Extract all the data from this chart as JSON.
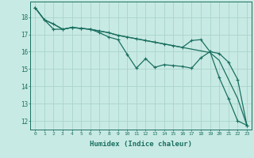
{
  "xlabel": "Humidex (Indice chaleur)",
  "background_color": "#c8eae4",
  "grid_color": "#a8d4cc",
  "line_color": "#1a7060",
  "xlim": [
    -0.5,
    23.5
  ],
  "ylim": [
    11.5,
    18.9
  ],
  "xticks": [
    0,
    1,
    2,
    3,
    4,
    5,
    6,
    7,
    8,
    9,
    10,
    11,
    12,
    13,
    14,
    15,
    16,
    17,
    18,
    19,
    20,
    21,
    22,
    23
  ],
  "yticks": [
    12,
    13,
    14,
    15,
    16,
    17,
    18
  ],
  "series1_x": [
    0,
    1,
    2,
    3,
    4,
    5,
    6,
    7,
    8,
    9,
    10,
    11,
    12,
    13,
    14,
    15,
    16,
    17,
    18,
    19,
    20,
    21,
    22,
    23
  ],
  "series1_y": [
    18.55,
    17.85,
    17.6,
    17.3,
    17.4,
    17.35,
    17.3,
    17.2,
    17.1,
    16.95,
    16.85,
    16.75,
    16.65,
    16.55,
    16.45,
    16.35,
    16.25,
    16.15,
    16.05,
    15.95,
    15.5,
    14.4,
    13.3,
    11.75
  ],
  "series2_x": [
    0,
    1,
    2,
    3,
    4,
    5,
    6,
    7,
    8,
    9,
    10,
    11,
    12,
    13,
    14,
    15,
    16,
    17,
    18,
    19,
    20,
    21,
    22,
    23
  ],
  "series2_y": [
    18.55,
    17.85,
    17.6,
    17.3,
    17.4,
    17.35,
    17.3,
    17.2,
    17.1,
    16.95,
    16.85,
    16.75,
    16.65,
    16.55,
    16.45,
    16.35,
    16.25,
    16.65,
    16.7,
    16.0,
    15.9,
    15.4,
    14.4,
    11.75
  ],
  "series3_x": [
    0,
    1,
    2,
    3,
    4,
    5,
    6,
    7,
    8,
    9,
    10,
    11,
    12,
    13,
    14,
    15,
    16,
    17,
    18,
    19,
    20,
    21,
    22,
    23
  ],
  "series3_y": [
    18.55,
    17.85,
    17.3,
    17.3,
    17.4,
    17.35,
    17.3,
    17.1,
    16.85,
    16.7,
    15.85,
    15.05,
    15.6,
    15.1,
    15.25,
    15.2,
    15.15,
    15.05,
    15.65,
    16.0,
    14.5,
    13.3,
    12.0,
    11.75
  ]
}
